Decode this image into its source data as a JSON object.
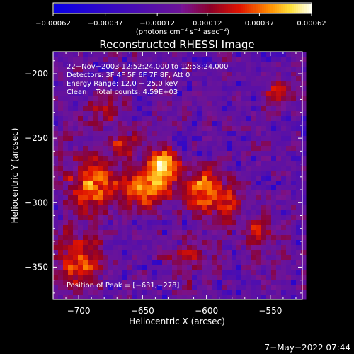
{
  "chart_data": {
    "type": "heatmap",
    "title": "Reconstructed RHESSI Image",
    "xlabel": "Heliocentric X (arcsec)",
    "ylabel": "Heliocentric Y (arcsec)",
    "xlim": [
      -720,
      -525
    ],
    "ylim": [
      -375,
      -183
    ],
    "x_ticks": [
      -700,
      -650,
      -600,
      -550
    ],
    "x_tick_labels": [
      "−700",
      "−650",
      "−600",
      "−550"
    ],
    "y_ticks": [
      -200,
      -250,
      -300,
      -350
    ],
    "y_tick_labels": [
      "−200",
      "−250",
      "−300",
      "−350"
    ],
    "colorbar": {
      "range": [
        -0.00062,
        0.00062
      ],
      "ticks": [
        -0.00062,
        -0.00037,
        -0.00012,
        0.00012,
        0.00037,
        0.00062
      ],
      "tick_labels": [
        "−0.00062",
        "−0.00037",
        "−0.00012",
        "0.00012",
        "0.00037",
        "0.00062"
      ],
      "units_main": "(photons cm",
      "units_sup1": "−2",
      "units_mid": " s",
      "units_sup2": "−1",
      "units_mid2": " asec",
      "units_sup3": "−2",
      "units_end": ")"
    },
    "annotations": [
      "22−Nov−2003 12:52:24.000 to 12:58:24.000",
      "Detectors: 3F 4F 5F 6F 7F 8F, Att 0",
      "Energy Range: 12.0 − 25.0 keV",
      "Clean    Total counts: 4.59E+03"
    ],
    "peak_label": "Position of Peak = [−631,−278]",
    "peak_position": [
      -631,
      -278
    ],
    "sources": [
      {
        "x": -634,
        "y": -271,
        "sx": 8,
        "sy": 9,
        "amp": 1.0
      },
      {
        "x": -648,
        "y": -290,
        "sx": 14,
        "sy": 10,
        "amp": 0.75
      },
      {
        "x": -605,
        "y": -290,
        "sx": 9,
        "sy": 12,
        "amp": 0.7
      },
      {
        "x": -583,
        "y": -300,
        "sx": 8,
        "sy": 12,
        "amp": 0.6
      },
      {
        "x": -690,
        "y": -285,
        "sx": 13,
        "sy": 16,
        "amp": 0.7
      },
      {
        "x": -700,
        "y": -345,
        "sx": 12,
        "sy": 14,
        "amp": 0.6
      },
      {
        "x": -665,
        "y": -255,
        "sx": 8,
        "sy": 7,
        "amp": 0.45
      },
      {
        "x": -560,
        "y": -325,
        "sx": 8,
        "sy": 8,
        "amp": 0.5
      },
      {
        "x": -545,
        "y": -215,
        "sx": 6,
        "sy": 8,
        "amp": 0.5
      },
      {
        "x": -680,
        "y": -230,
        "sx": 10,
        "sy": 8,
        "amp": 0.35
      },
      {
        "x": -615,
        "y": -345,
        "sx": 12,
        "sy": 10,
        "amp": 0.3
      }
    ],
    "colormap": "red-temperature with blue negatives"
  },
  "footer": {
    "timestamp": "7−May−2022 07:44"
  }
}
